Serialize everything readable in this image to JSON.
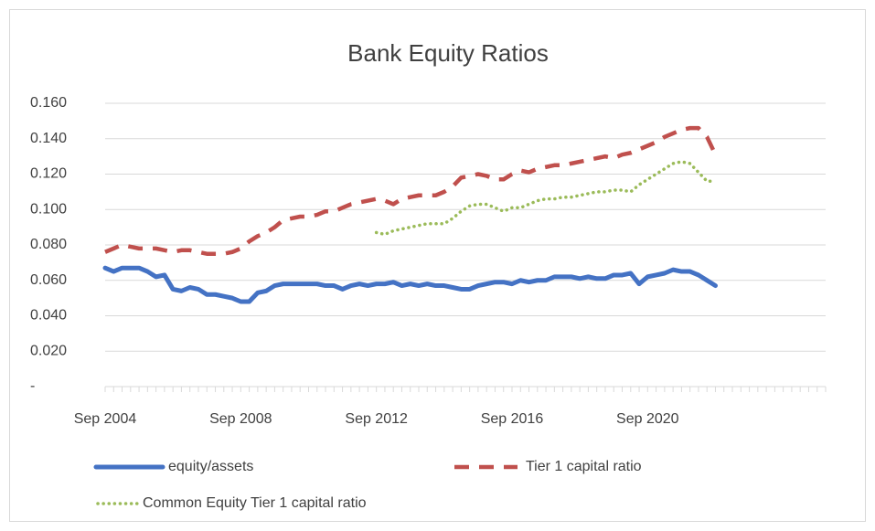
{
  "chart_data": {
    "type": "line",
    "title": "Bank Equity Ratios",
    "categories": [
      "Sep 2004",
      null,
      null,
      null,
      null,
      null,
      null,
      null,
      null,
      null,
      null,
      null,
      null,
      null,
      null,
      null,
      "Sep 2008",
      null,
      null,
      null,
      null,
      null,
      null,
      null,
      null,
      null,
      null,
      null,
      null,
      null,
      null,
      null,
      "Sep 2012",
      null,
      null,
      null,
      null,
      null,
      null,
      null,
      null,
      null,
      null,
      null,
      null,
      null,
      null,
      null,
      "Sep 2016",
      null,
      null,
      null,
      null,
      null,
      null,
      null,
      null,
      null,
      null,
      null,
      null,
      null,
      null,
      null,
      "Sep 2020",
      null,
      null,
      null,
      null,
      null,
      null,
      null,
      null,
      null,
      null,
      null,
      null,
      null,
      null,
      null,
      null,
      null,
      null,
      null,
      null,
      null
    ],
    "series": [
      {
        "name": "equity/assets",
        "color": "#4472c4",
        "values": [
          0.067,
          0.065,
          0.067,
          0.067,
          0.067,
          0.065,
          0.062,
          0.063,
          0.055,
          0.054,
          0.056,
          0.055,
          0.052,
          0.052,
          0.051,
          0.05,
          0.048,
          0.048,
          0.053,
          0.054,
          0.057,
          0.058,
          0.058,
          0.058,
          0.058,
          0.058,
          0.057,
          0.057,
          0.055,
          0.057,
          0.058,
          0.057,
          0.058,
          0.058,
          0.059,
          0.057,
          0.058,
          0.057,
          0.058,
          0.057,
          0.057,
          0.056,
          0.055,
          0.055,
          0.057,
          0.058,
          0.059,
          0.059,
          0.058,
          0.06,
          0.059,
          0.06,
          0.06,
          0.062,
          0.062,
          0.062,
          0.061,
          0.062,
          0.061,
          0.061,
          0.063,
          0.063,
          0.064,
          0.058,
          0.062,
          0.063,
          0.064,
          0.066,
          0.065,
          0.065,
          0.063,
          0.06,
          0.057,
          null,
          null,
          null,
          null,
          null,
          null,
          null,
          null,
          null,
          null,
          null,
          null,
          null
        ]
      },
      {
        "name": "Tier 1 capital ratio",
        "color": "#c0504d",
        "values": [
          0.076,
          0.078,
          0.08,
          0.079,
          0.078,
          0.078,
          0.078,
          0.077,
          0.076,
          0.077,
          0.077,
          0.076,
          0.075,
          0.075,
          0.075,
          0.076,
          0.078,
          0.082,
          0.085,
          0.087,
          0.09,
          0.094,
          0.095,
          0.096,
          0.096,
          0.097,
          0.099,
          0.099,
          0.101,
          0.103,
          0.104,
          0.105,
          0.106,
          0.105,
          0.103,
          0.106,
          0.107,
          0.108,
          0.108,
          0.108,
          0.11,
          0.113,
          0.118,
          0.119,
          0.12,
          0.119,
          0.117,
          0.117,
          0.12,
          0.122,
          0.121,
          0.123,
          0.124,
          0.125,
          0.125,
          0.126,
          0.127,
          0.128,
          0.129,
          0.13,
          0.129,
          0.131,
          0.132,
          0.134,
          0.136,
          0.138,
          0.141,
          0.143,
          0.145,
          0.146,
          0.146,
          0.141,
          0.131,
          null,
          null,
          null,
          null,
          null,
          null,
          null,
          null,
          null,
          null,
          null,
          null,
          null
        ]
      },
      {
        "name": "Common Equity Tier 1 capital ratio",
        "color": "#9bbb59",
        "values": [
          null,
          null,
          null,
          null,
          null,
          null,
          null,
          null,
          null,
          null,
          null,
          null,
          null,
          null,
          null,
          null,
          null,
          null,
          null,
          null,
          null,
          null,
          null,
          null,
          null,
          null,
          null,
          null,
          null,
          null,
          null,
          null,
          0.087,
          0.086,
          0.088,
          0.089,
          0.09,
          0.091,
          0.092,
          0.092,
          0.092,
          0.095,
          0.099,
          0.102,
          0.103,
          0.103,
          0.101,
          0.099,
          0.101,
          0.101,
          0.103,
          0.105,
          0.106,
          0.106,
          0.107,
          0.107,
          0.108,
          0.109,
          0.11,
          0.11,
          0.111,
          0.111,
          0.11,
          0.114,
          0.117,
          0.12,
          0.123,
          0.126,
          0.127,
          0.126,
          0.121,
          0.116,
          0.116,
          null,
          null,
          null,
          null,
          null,
          null,
          null,
          null,
          null,
          null,
          null,
          null,
          null
        ]
      }
    ],
    "ylim": [
      0,
      0.16
    ],
    "yticks": [
      {
        "value": 0,
        "label": "-"
      },
      {
        "value": 0.02,
        "label": "0.020"
      },
      {
        "value": 0.04,
        "label": "0.040"
      },
      {
        "value": 0.06,
        "label": "0.060"
      },
      {
        "value": 0.08,
        "label": "0.080"
      },
      {
        "value": 0.1,
        "label": "0.100"
      },
      {
        "value": 0.12,
        "label": "0.120"
      },
      {
        "value": 0.14,
        "label": "0.140"
      },
      {
        "value": 0.16,
        "label": "0.160"
      }
    ],
    "grid": true,
    "legend": "bottom"
  }
}
